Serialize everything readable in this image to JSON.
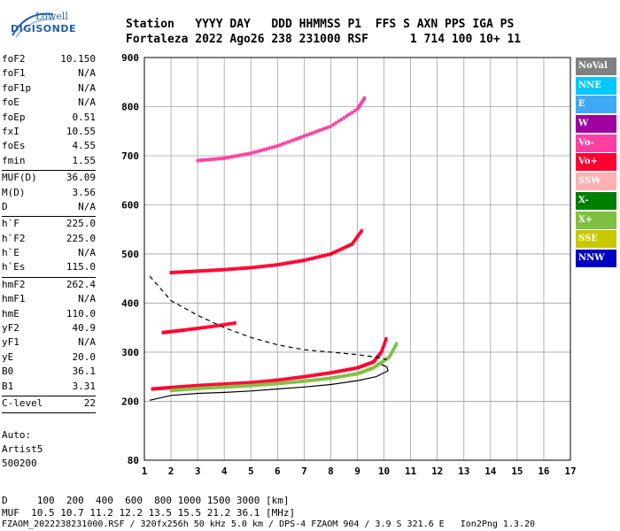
{
  "logo": {
    "top": "Lowell",
    "main": "DIGISONDE"
  },
  "header": {
    "line1": "Station   YYYY DAY   DDD HHMMSS P1  FFS S AXN PPS IGA PS",
    "line2": "Fortaleza 2022 Ago26 238 231000 RSF      1 714 100 10+ 11"
  },
  "params": [
    {
      "label": "foF2",
      "value": "10.150"
    },
    {
      "label": "foF1",
      "value": "N/A"
    },
    {
      "label": "foF1p",
      "value": "N/A"
    },
    {
      "label": "foE",
      "value": "N/A"
    },
    {
      "label": "foEp",
      "value": "0.51"
    },
    {
      "label": "fxI",
      "value": "10.55"
    },
    {
      "label": "foEs",
      "value": "4.55"
    },
    {
      "label": "fmin",
      "value": "1.55"
    },
    {
      "sep": true
    },
    {
      "label": "MUF(D)",
      "value": "36.09"
    },
    {
      "label": "M(D)",
      "value": "3.56"
    },
    {
      "label": "D",
      "value": "N/A"
    },
    {
      "sep": true
    },
    {
      "label": "h`F",
      "value": "225.0"
    },
    {
      "label": "h`F2",
      "value": "225.0"
    },
    {
      "label": "h`E",
      "value": "N/A"
    },
    {
      "label": "h`Es",
      "value": "115.0"
    },
    {
      "sep": true
    },
    {
      "label": "hmF2",
      "value": "262.4"
    },
    {
      "label": "hmF1",
      "value": "N/A"
    },
    {
      "label": "hmE",
      "value": "110.0"
    },
    {
      "label": "yF2",
      "value": "40.9"
    },
    {
      "label": "yF1",
      "value": "N/A"
    },
    {
      "label": "yE",
      "value": "20.0"
    },
    {
      "label": "B0",
      "value": "36.1"
    },
    {
      "label": "B1",
      "value": "3.31"
    },
    {
      "sep": true
    },
    {
      "label": "C-level",
      "value": "22"
    },
    {
      "sep": true
    }
  ],
  "auto": {
    "line1": "Auto:",
    "line2": "Artist5",
    "line3": "500200"
  },
  "bottom": {
    "d_row": "D     100  200  400  600  800 1000 1500 3000 [km]",
    "muf_row": "MUF  10.5 10.7 11.2 12.2 13.5 15.5 21.2 36.1 [MHz]",
    "footer": "FZAOM_2022238231000.RSF / 320fx256h 50 kHz 5.0 km / DPS-4 FZAOM 904 / 3.9 S 321.6 E   Ion2Png 1.3.20"
  },
  "legend": [
    {
      "label": "NoVal",
      "color": "#808080"
    },
    {
      "label": "NNE",
      "color": "#00c8ff"
    },
    {
      "label": "E",
      "color": "#3fa9f5"
    },
    {
      "label": "W",
      "color": "#a0009f"
    },
    {
      "label": "Vo-",
      "color": "#ff40a0"
    },
    {
      "label": "Vo+",
      "color": "#ff0030"
    },
    {
      "label": "SSW",
      "color": "#ffb0b0"
    },
    {
      "label": "X-",
      "color": "#008000"
    },
    {
      "label": "X+",
      "color": "#80c040"
    },
    {
      "label": "SSE",
      "color": "#c8c800"
    },
    {
      "label": "NNW",
      "color": "#0000c0"
    }
  ],
  "chart_data": {
    "type": "scatter",
    "xlim": [
      1,
      17
    ],
    "ylim": [
      80,
      900
    ],
    "x_ticks": [
      1,
      2,
      3,
      4,
      5,
      6,
      7,
      8,
      9,
      10,
      11,
      12,
      13,
      14,
      15,
      16,
      17
    ],
    "y_ticks": [
      80,
      200,
      300,
      400,
      500,
      600,
      700,
      800,
      900
    ],
    "grid": true,
    "traces": [
      {
        "name": "O-trace",
        "color": "#ff0030",
        "x": [
          1.3,
          2,
          3,
          4,
          5,
          6,
          7,
          8,
          9,
          9.6,
          9.9,
          10.1
        ],
        "y": [
          225,
          228,
          232,
          235,
          238,
          243,
          250,
          258,
          268,
          280,
          300,
          330
        ]
      },
      {
        "name": "X-trace",
        "color": "#80c040",
        "x": [
          2,
          3,
          4,
          5,
          6,
          7,
          8,
          9,
          9.6,
          10.2,
          10.5
        ],
        "y": [
          222,
          226,
          229,
          232,
          236,
          241,
          247,
          256,
          268,
          290,
          320
        ]
      },
      {
        "name": "2F",
        "color": "#ff0030",
        "x": [
          2,
          3,
          4,
          5,
          6,
          7,
          8,
          8.8,
          9.2
        ],
        "y": [
          462,
          465,
          468,
          472,
          478,
          487,
          500,
          520,
          550
        ]
      },
      {
        "name": "3F",
        "color": "#ff40a0",
        "x": [
          3,
          4,
          5,
          6,
          7,
          8,
          9,
          9.3
        ],
        "y": [
          690,
          695,
          705,
          720,
          740,
          760,
          795,
          820
        ]
      },
      {
        "name": "Es",
        "color": "#ff0030",
        "x": [
          1.7,
          2.5,
          3.5,
          4.5
        ],
        "y": [
          340,
          345,
          352,
          360
        ]
      }
    ],
    "profile_solid": {
      "x": [
        1.2,
        2,
        3,
        4,
        5,
        6,
        7,
        8,
        9,
        9.7,
        10.15,
        10.1,
        9.9
      ],
      "y": [
        202,
        212,
        216,
        218,
        221,
        225,
        229,
        234,
        242,
        250,
        262,
        270,
        275
      ]
    },
    "profile_dashed": {
      "x": [
        1.2,
        2,
        3,
        4,
        5,
        6,
        7,
        8,
        9,
        9.7,
        10.1
      ],
      "y": [
        455,
        405,
        375,
        350,
        330,
        315,
        305,
        300,
        295,
        290,
        285
      ]
    }
  }
}
